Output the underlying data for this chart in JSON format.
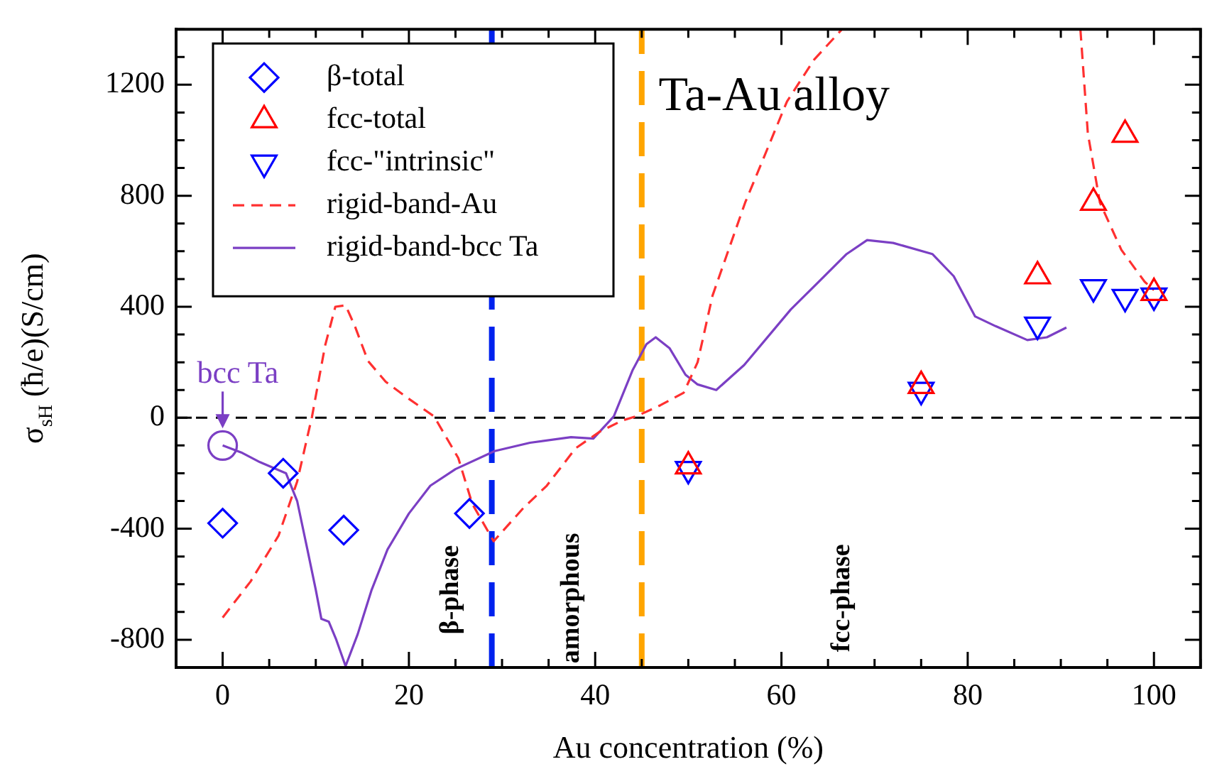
{
  "chart_data": {
    "type": "scatter",
    "title": "Ta-Au alloy",
    "xlabel": "Au concentration (%)",
    "ylabel": "σ$_{sH}$ (ħ/e)(S/cm)",
    "xlim": [
      -5,
      105
    ],
    "xticks": [
      {
        "value": -5,
        "label": null
      },
      0,
      {
        "value": 5,
        "label": null
      },
      {
        "value": 10,
        "label": null
      },
      {
        "value": 15,
        "label": null
      },
      20,
      {
        "value": 25,
        "label": null
      },
      {
        "value": 30,
        "label": null
      },
      {
        "value": 35,
        "label": null
      },
      40,
      {
        "value": 45,
        "label": null
      },
      {
        "value": 50,
        "label": null
      },
      {
        "value": 55,
        "label": null
      },
      60,
      {
        "value": 65,
        "label": null
      },
      {
        "value": 70,
        "label": null
      },
      {
        "value": 75,
        "label": null
      },
      80,
      {
        "value": 85,
        "label": null
      },
      {
        "value": 90,
        "label": null
      },
      {
        "value": 95,
        "label": null
      },
      100,
      {
        "value": 105,
        "label": null
      }
    ],
    "ylim": [
      -900,
      1400
    ],
    "yticks": [
      {
        "value": -900,
        "label": null
      },
      -800,
      {
        "value": -700,
        "label": null
      },
      {
        "value": -600,
        "label": null
      },
      {
        "value": -500,
        "label": null
      },
      -400,
      {
        "value": -300,
        "label": null
      },
      {
        "value": -200,
        "label": null
      },
      {
        "value": -100,
        "label": null
      },
      0,
      {
        "value": 100,
        "label": null
      },
      {
        "value": 200,
        "label": null
      },
      {
        "value": 300,
        "label": null
      },
      400,
      {
        "value": 500,
        "label": null
      },
      {
        "value": 600,
        "label": null
      },
      {
        "value": 700,
        "label": null
      },
      800,
      {
        "value": 900,
        "label": null
      },
      {
        "value": 1000,
        "label": null
      },
      {
        "value": 1100,
        "label": null
      },
      1200,
      {
        "value": 1300,
        "label": null
      },
      {
        "value": 1400,
        "label": null
      }
    ],
    "grid": false,
    "legend": "top left",
    "series": [
      {
        "name": "β-total",
        "type": "scatter",
        "marker": "diamond",
        "color": "#0000ff",
        "x": [
          0,
          6.5,
          13,
          26.5
        ],
        "values": [
          -380,
          -200,
          -405,
          -345
        ]
      },
      {
        "name": "fcc-total",
        "type": "scatter",
        "marker": "triangle",
        "color": "#ff0000",
        "x": [
          50,
          75,
          87.5,
          93.5,
          96.9,
          100
        ],
        "values": [
          -175,
          115,
          510,
          775,
          1020,
          450
        ]
      },
      {
        "name": "fcc-\"intrinsic\"",
        "type": "scatter",
        "marker": "triangle-down",
        "color": "#0000ff",
        "x": [
          50,
          75,
          87.5,
          93.5,
          96.9,
          100
        ],
        "values": [
          -185,
          100,
          335,
          470,
          435,
          440
        ]
      },
      {
        "name": "rigid-band-Au",
        "type": "line",
        "marker": "none",
        "line_style": "dashed",
        "color": "#ff3030",
        "x": [
          0,
          3,
          6,
          8,
          9.6,
          11,
          12.1,
          13.2,
          14.2,
          15.6,
          17.5,
          19.7,
          22.7,
          25.3,
          26.8,
          29.1,
          32.3,
          34.8,
          37.9,
          40.5,
          42.9,
          44.4,
          47,
          49.5,
          51,
          52.6,
          56.1,
          60.6,
          63.5,
          66.5,
          80,
          92.1,
          92.9,
          94.2,
          96.5,
          99,
          100
        ],
        "values": [
          -720,
          -590,
          -425,
          -230,
          5,
          260,
          400,
          405,
          330,
          205,
          130,
          75,
          5,
          -145,
          -310,
          -445,
          -325,
          -245,
          -110,
          -50,
          -10,
          5,
          45,
          90,
          200,
          440,
          775,
          1140,
          1290,
          1400,
          null,
          1400,
          1025,
          775,
          605,
          490,
          460
        ]
      },
      {
        "name": "rigid-band-bcc Ta",
        "type": "line",
        "marker": "none",
        "line_style": "solid",
        "color": "#7b3fc4",
        "x": [
          0,
          2,
          4,
          6.8,
          8,
          9.1,
          10,
          10.6,
          11.4,
          12.2,
          13.2,
          14.5,
          16,
          17.7,
          20,
          22.3,
          25,
          29.2,
          33,
          37.4,
          39.8,
          42,
          44,
          45.5,
          46.5,
          48,
          49.7,
          51,
          53,
          56,
          61,
          64,
          67,
          69.2,
          72,
          76.2,
          78.5,
          80.8,
          83,
          86.4,
          88.5,
          90.6
        ],
        "values": [
          -100,
          -125,
          -160,
          -200,
          -300,
          -475,
          -620,
          -725,
          -735,
          -800,
          -895,
          -780,
          -620,
          -475,
          -345,
          -245,
          -185,
          -120,
          -90,
          -70,
          -75,
          5,
          170,
          265,
          290,
          250,
          155,
          120,
          100,
          190,
          390,
          490,
          590,
          640,
          630,
          590,
          510,
          365,
          330,
          280,
          290,
          325
        ]
      }
    ],
    "ref_lines": [
      {
        "axis": "y",
        "value": 0,
        "color": "#000000",
        "line_style": "dashed"
      },
      {
        "axis": "x",
        "value": 28.9,
        "color": "#0022ee",
        "line_style": "dashed"
      },
      {
        "axis": "x",
        "value": 45,
        "color": "#ffa500",
        "line_style": "dashed"
      }
    ],
    "annotations": [
      {
        "text": "bcc Ta",
        "x": 0,
        "y": -100
      },
      "β-phase",
      "amorphous",
      "fcc-phase"
    ]
  }
}
